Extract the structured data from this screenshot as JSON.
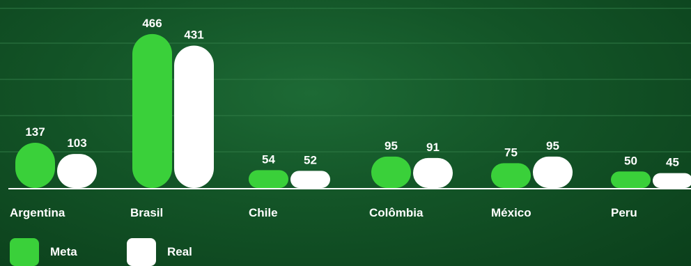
{
  "chart_data": {
    "type": "bar",
    "categories": [
      "Argentina",
      "Brasil",
      "Chile",
      "Colômbia",
      "México",
      "Peru"
    ],
    "series": [
      {
        "name": "Meta",
        "values": [
          137,
          466,
          54,
          95,
          75,
          50
        ]
      },
      {
        "name": "Real",
        "values": [
          103,
          431,
          52,
          91,
          95,
          45
        ]
      }
    ],
    "ylim": [
      0,
      500
    ],
    "grid": true,
    "legend": "bottom-left"
  },
  "colors": {
    "meta": "#3ad03a",
    "real": "#ffffff",
    "grid": "#2f7a45",
    "axis": "#ffffff",
    "text": "#ffffff"
  }
}
